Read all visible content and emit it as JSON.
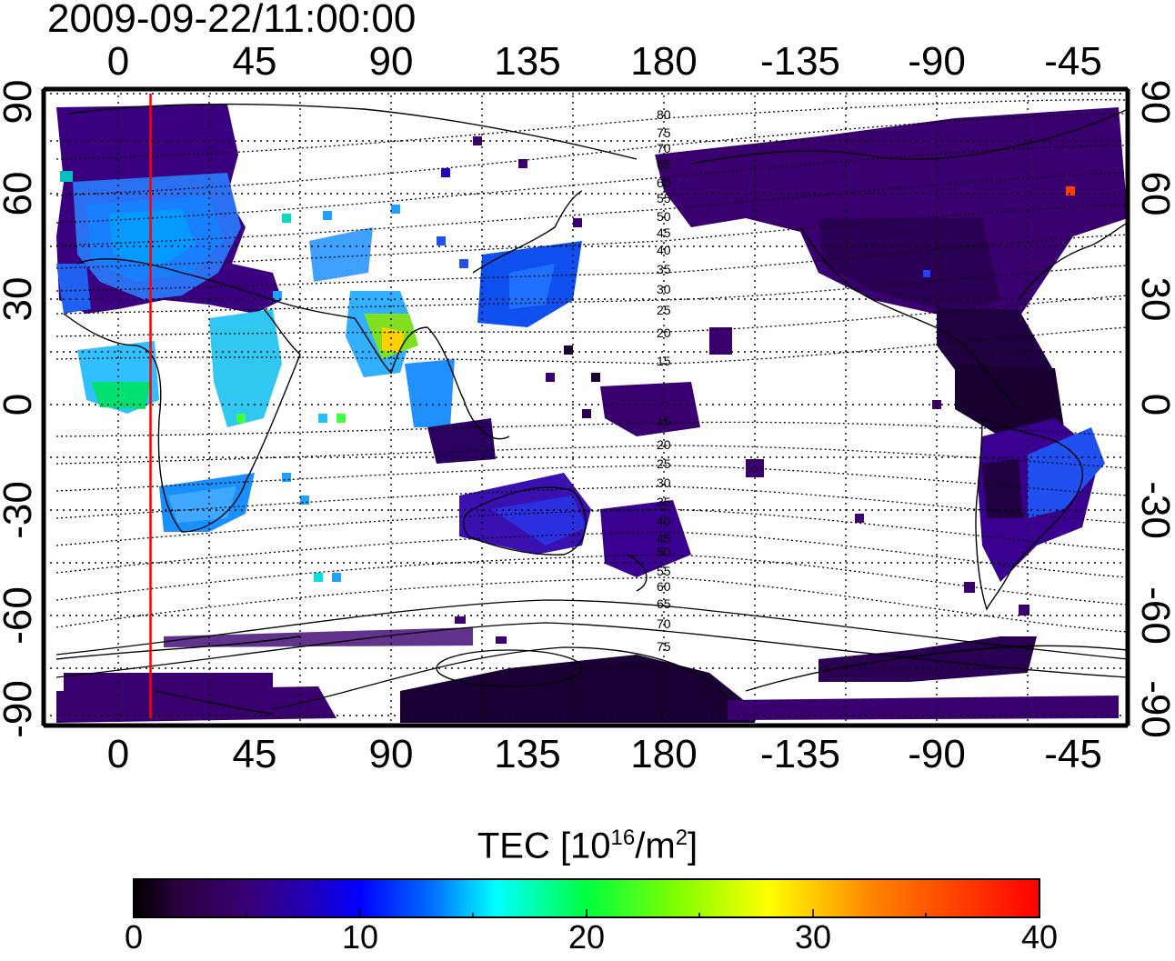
{
  "title": "2009-09-22/11:00:00",
  "map": {
    "top_lon_labels": [
      "0",
      "45",
      "90",
      "135",
      "180",
      "-135",
      "-90",
      "-45"
    ],
    "bottom_lon_labels": [
      "0",
      "45",
      "90",
      "135",
      "180",
      "-135",
      "-90",
      "-45"
    ],
    "left_lat_labels": [
      "90",
      "60",
      "30",
      "0",
      "-30",
      "-60",
      "-90"
    ],
    "right_lat_labels": [
      "90",
      "60",
      "30",
      "0",
      "-30",
      "-60",
      "-90"
    ],
    "lon_range": [
      -20,
      335
    ],
    "lat_range": [
      -90,
      90
    ],
    "lon_ticks": [
      0,
      45,
      90,
      135,
      180,
      225,
      270,
      315
    ],
    "lat_ticks": [
      90,
      60,
      30,
      0,
      -30,
      -60,
      -90
    ],
    "terminator_lon": 15,
    "terminator_color": "#ff0000",
    "grid": true,
    "contour_labels_north": [
      "80",
      "75",
      "70",
      "65",
      "60",
      "55",
      "50",
      "45",
      "40",
      "35",
      "30",
      "25",
      "20",
      "15"
    ],
    "contour_labels_south": [
      "15",
      "20",
      "25",
      "30",
      "35",
      "40",
      "45",
      "50",
      "55",
      "60",
      "65",
      "70",
      "75"
    ]
  },
  "colorbar": {
    "label_main": "TEC  [10",
    "label_exp1": "16",
    "label_mid": "/m",
    "label_exp2": "2",
    "label_end": "]",
    "ticks": [
      "0",
      "10",
      "20",
      "30",
      "40"
    ],
    "range": [
      0,
      40
    ],
    "colors": [
      "#000000",
      "#3a0060",
      "#2a00c0",
      "#0000ff",
      "#0080ff",
      "#00ffff",
      "#00ff40",
      "#80ff00",
      "#ffff00",
      "#ff8000",
      "#ff0000"
    ]
  }
}
